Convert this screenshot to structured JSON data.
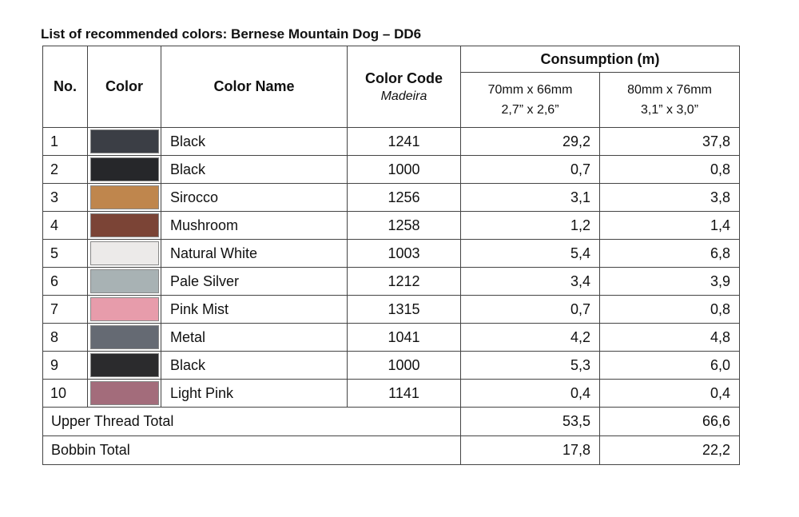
{
  "title": "List of recommended colors: Bernese Mountain Dog – DD6",
  "headers": {
    "no": "No.",
    "color": "Color",
    "color_name": "Color Name",
    "color_code": "Color Code",
    "maker": "Madeira",
    "consumption": "Consumption (m)",
    "size_a_mm": "70mm x 66mm",
    "size_a_in": "2,7” x 2,6”",
    "size_b_mm": "80mm x 76mm",
    "size_b_in": "3,1” x 3,0”"
  },
  "rows": [
    {
      "no": "1",
      "swatch": "#3b3e45",
      "name": "Black",
      "code": "1241",
      "a": "29,2",
      "b": "37,8"
    },
    {
      "no": "2",
      "swatch": "#26272a",
      "name": "Black",
      "code": "1000",
      "a": "0,7",
      "b": "0,8"
    },
    {
      "no": "3",
      "swatch": "#bf864d",
      "name": "Sirocco",
      "code": "1256",
      "a": "3,1",
      "b": "3,8"
    },
    {
      "no": "4",
      "swatch": "#7b4436",
      "name": "Mushroom",
      "code": "1258",
      "a": "1,2",
      "b": "1,4"
    },
    {
      "no": "5",
      "swatch": "#eceae9",
      "name": "Natural White",
      "code": "1003",
      "a": "5,4",
      "b": "6,8"
    },
    {
      "no": "6",
      "swatch": "#a8b2b4",
      "name": "Pale Silver",
      "code": "1212",
      "a": "3,4",
      "b": "3,9"
    },
    {
      "no": "7",
      "swatch": "#e79cab",
      "name": "Pink Mist",
      "code": "1315",
      "a": "0,7",
      "b": "0,8"
    },
    {
      "no": "8",
      "swatch": "#656a73",
      "name": "Metal",
      "code": "1041",
      "a": "4,2",
      "b": "4,8"
    },
    {
      "no": "9",
      "swatch": "#2b2b2d",
      "name": "Black",
      "code": "1000",
      "a": "5,3",
      "b": "6,0"
    },
    {
      "no": "10",
      "swatch": "#a36c7b",
      "name": "Light Pink",
      "code": "1141",
      "a": "0,4",
      "b": "0,4"
    }
  ],
  "totals": [
    {
      "label": "Upper Thread Total",
      "a": "53,5",
      "b": "66,6"
    },
    {
      "label": "Bobbin Total",
      "a": "17,8",
      "b": "22,2"
    }
  ]
}
